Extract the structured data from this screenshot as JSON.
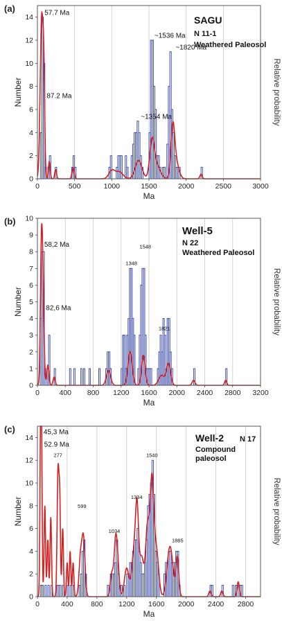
{
  "chart_data": [
    {
      "type": "bar",
      "panel": "(a)",
      "sample": "SAGU",
      "n_label": "N 11-1",
      "rock": "Weathered Paleosol",
      "xlabel": "Ma",
      "ylabel": "Number",
      "y2label": "Relative probability",
      "xlim": [
        0,
        3000
      ],
      "ylim": [
        0,
        15
      ],
      "xticks": [
        0,
        500,
        1000,
        1500,
        2000,
        2500,
        3000
      ],
      "yticks": [
        0,
        2,
        4,
        6,
        8,
        10,
        12,
        14
      ],
      "bin_width": 20,
      "bars": {
        "x": [
          40,
          60,
          80,
          100,
          140,
          160,
          240,
          460,
          480,
          500,
          960,
          980,
          1060,
          1080,
          1100,
          1120,
          1180,
          1200,
          1260,
          1280,
          1300,
          1320,
          1340,
          1360,
          1380,
          1400,
          1500,
          1520,
          1540,
          1560,
          1580,
          1600,
          1620,
          1640,
          1680,
          1700,
          1740,
          1760,
          1780,
          1800,
          1820,
          1840,
          1860,
          1880,
          1900,
          2200
        ],
        "counts": [
          4,
          14,
          10,
          1,
          1,
          2,
          1,
          1,
          2,
          1,
          1,
          2,
          1,
          2,
          2,
          2,
          2,
          1,
          2,
          3,
          4,
          4,
          5,
          4,
          2,
          1,
          4,
          12,
          12,
          8,
          6,
          2,
          2,
          1,
          1,
          1,
          3,
          8,
          11,
          6,
          4,
          2,
          1,
          1,
          1,
          1
        ]
      },
      "pdf": {
        "peaks": [
          [
            57.7,
            20,
            14
          ],
          [
            87.2,
            12,
            6.5
          ],
          [
            160,
            12,
            1.5
          ],
          [
            245,
            12,
            0.8
          ],
          [
            480,
            15,
            1.0
          ],
          [
            1000,
            40,
            0.7
          ],
          [
            1100,
            50,
            0.6
          ],
          [
            1360,
            45,
            1.6
          ],
          [
            1540,
            30,
            3.0
          ],
          [
            1600,
            50,
            1.2
          ],
          [
            1820,
            25,
            4.0
          ],
          [
            1860,
            40,
            1.5
          ],
          [
            2200,
            15,
            0.4
          ]
        ]
      },
      "annotations": [
        {
          "text": "57.7 Ma",
          "x": 57.7,
          "y": 14.2
        },
        {
          "text": "87.2 Ma",
          "x": 87.2,
          "y": 7
        },
        {
          "text": "~1354 Ma",
          "x": 1354,
          "y": 5.2
        },
        {
          "text": "~1536 Ma",
          "x": 1536,
          "y": 12.2
        },
        {
          "text": "~1820 Ma",
          "x": 1820,
          "y": 11.2
        }
      ]
    },
    {
      "type": "bar",
      "panel": "(b)",
      "sample": "Well-5",
      "n_label": "N 22",
      "rock": "Weathered Paleosol",
      "xlabel": "Ma",
      "ylabel": "Number",
      "y2label": "Relative probability",
      "xlim": [
        0,
        3200
      ],
      "ylim": [
        0,
        10
      ],
      "xticks": [
        0,
        400,
        800,
        1200,
        1600,
        2000,
        2400,
        2800,
        3200
      ],
      "yticks": [
        0,
        1,
        2,
        3,
        4,
        5,
        6,
        7,
        8,
        9,
        10
      ],
      "bin_width": 20,
      "bars": {
        "x": [
          40,
          60,
          80,
          100,
          140,
          160,
          240,
          460,
          520,
          620,
          660,
          740,
          880,
          980,
          1000,
          1020,
          1040,
          1200,
          1220,
          1240,
          1260,
          1280,
          1300,
          1320,
          1340,
          1360,
          1380,
          1440,
          1460,
          1480,
          1500,
          1520,
          1540,
          1560,
          1580,
          1600,
          1620,
          1720,
          1740,
          1760,
          1780,
          1800,
          1820,
          1840,
          1860,
          1880,
          1900,
          1920,
          2240,
          2700
        ],
        "counts": [
          4,
          8,
          8,
          1,
          1,
          3,
          1,
          1,
          1,
          1,
          1,
          1,
          1,
          1,
          2,
          2,
          1,
          1,
          3,
          3,
          1,
          3,
          4,
          7,
          7,
          4,
          3,
          1,
          3,
          6,
          7,
          7,
          3,
          1,
          1,
          1,
          1,
          1,
          2,
          3,
          2,
          4,
          3,
          1,
          4,
          4,
          2,
          1,
          1,
          1
        ]
      },
      "pdf": {
        "peaks": [
          [
            58.2,
            15,
            8.2
          ],
          [
            82.6,
            15,
            4.5
          ],
          [
            150,
            15,
            1.2
          ],
          [
            240,
            15,
            0.5
          ],
          [
            1020,
            30,
            0.9
          ],
          [
            1330,
            30,
            2.0
          ],
          [
            1520,
            25,
            1.8
          ],
          [
            1780,
            40,
            0.6
          ],
          [
            1880,
            30,
            1.3
          ],
          [
            2240,
            20,
            0.3
          ],
          [
            2700,
            15,
            0.3
          ]
        ]
      },
      "annotations": [
        {
          "text": "58,2 Ma",
          "x": 58.2,
          "y": 8.3
        },
        {
          "text": "82,6 Ma",
          "x": 82.6,
          "y": 4.5
        },
        {
          "text": "1348",
          "x": 1348,
          "y": 7.2
        },
        {
          "text": "1548",
          "x": 1548,
          "y": 8.2
        },
        {
          "text": "1821",
          "x": 1821,
          "y": 3.3
        }
      ]
    },
    {
      "type": "bar",
      "panel": "(c)",
      "sample": "Well-2",
      "n_label": "N 17",
      "rock": "Compound paleosol",
      "xlabel": "Ma",
      "ylabel": "Number",
      "y2label": "Relative probability",
      "xlim": [
        0,
        3000
      ],
      "ylim": [
        0,
        15
      ],
      "xticks": [
        0,
        400,
        800,
        1200,
        1600,
        2000,
        2400,
        2800
      ],
      "yticks": [
        0,
        2,
        4,
        6,
        8,
        10,
        12,
        14
      ],
      "bin_width": 20,
      "bars": {
        "x": [
          40,
          60,
          100,
          140,
          180,
          260,
          280,
          300,
          340,
          400,
          440,
          480,
          560,
          580,
          600,
          620,
          640,
          940,
          980,
          1000,
          1020,
          1040,
          1060,
          1080,
          1100,
          1120,
          1160,
          1200,
          1220,
          1240,
          1260,
          1280,
          1300,
          1320,
          1340,
          1360,
          1380,
          1400,
          1420,
          1440,
          1460,
          1480,
          1500,
          1520,
          1540,
          1560,
          1580,
          1600,
          1620,
          1700,
          1720,
          1740,
          1760,
          1780,
          1800,
          1820,
          1840,
          1860,
          1880,
          1900,
          2320,
          2340,
          2480,
          2620,
          2660,
          2700,
          2720,
          2740
        ],
        "counts": [
          1,
          1,
          1,
          1,
          1,
          1,
          1,
          1,
          1,
          1,
          1,
          1,
          1,
          2,
          4,
          5,
          2,
          1,
          2,
          2,
          2,
          3,
          5,
          2,
          1,
          1,
          1,
          2,
          2,
          3,
          3,
          4,
          5,
          5,
          6,
          4,
          3,
          2,
          2,
          3,
          5,
          8,
          9,
          10,
          12,
          9,
          4,
          3,
          2,
          2,
          3,
          3,
          4,
          4,
          3,
          3,
          3,
          4,
          4,
          1,
          1,
          1,
          1,
          1,
          1,
          1,
          1,
          1
        ]
      },
      "pdf": {
        "peaks": [
          [
            45.3,
            10,
            13
          ],
          [
            52.9,
            10,
            11
          ],
          [
            100,
            10,
            8
          ],
          [
            140,
            10,
            5
          ],
          [
            180,
            10,
            7
          ],
          [
            277,
            12,
            11
          ],
          [
            300,
            10,
            8
          ],
          [
            340,
            10,
            6
          ],
          [
            400,
            10,
            3
          ],
          [
            440,
            10,
            4
          ],
          [
            480,
            10,
            3
          ],
          [
            580,
            20,
            3.5
          ],
          [
            620,
            20,
            5
          ],
          [
            1000,
            20,
            2
          ],
          [
            1050,
            20,
            4.5
          ],
          [
            1080,
            20,
            2.5
          ],
          [
            1200,
            30,
            2.5
          ],
          [
            1300,
            30,
            4
          ],
          [
            1340,
            20,
            6.5
          ],
          [
            1400,
            30,
            3.5
          ],
          [
            1480,
            25,
            6
          ],
          [
            1540,
            25,
            10
          ],
          [
            1600,
            30,
            4
          ],
          [
            1760,
            30,
            2.5
          ],
          [
            1800,
            30,
            3
          ],
          [
            1880,
            20,
            3.5
          ],
          [
            2320,
            15,
            0.5
          ],
          [
            2480,
            15,
            0.5
          ],
          [
            2700,
            15,
            1.3
          ]
        ]
      },
      "annotations": [
        {
          "text": "45,3 Ma",
          "x": 45.3,
          "y": 14.3
        },
        {
          "text": "52.9 Ma",
          "x": 52.9,
          "y": 13.2
        },
        {
          "text": "277",
          "x": 277,
          "y": 12.3
        },
        {
          "text": "599",
          "x": 599,
          "y": 7.8
        },
        {
          "text": "1034",
          "x": 1034,
          "y": 5.6
        },
        {
          "text": "1334",
          "x": 1334,
          "y": 8.6
        },
        {
          "text": "1540",
          "x": 1540,
          "y": 12.3
        },
        {
          "text": "1885",
          "x": 1885,
          "y": 4.8
        }
      ]
    }
  ]
}
